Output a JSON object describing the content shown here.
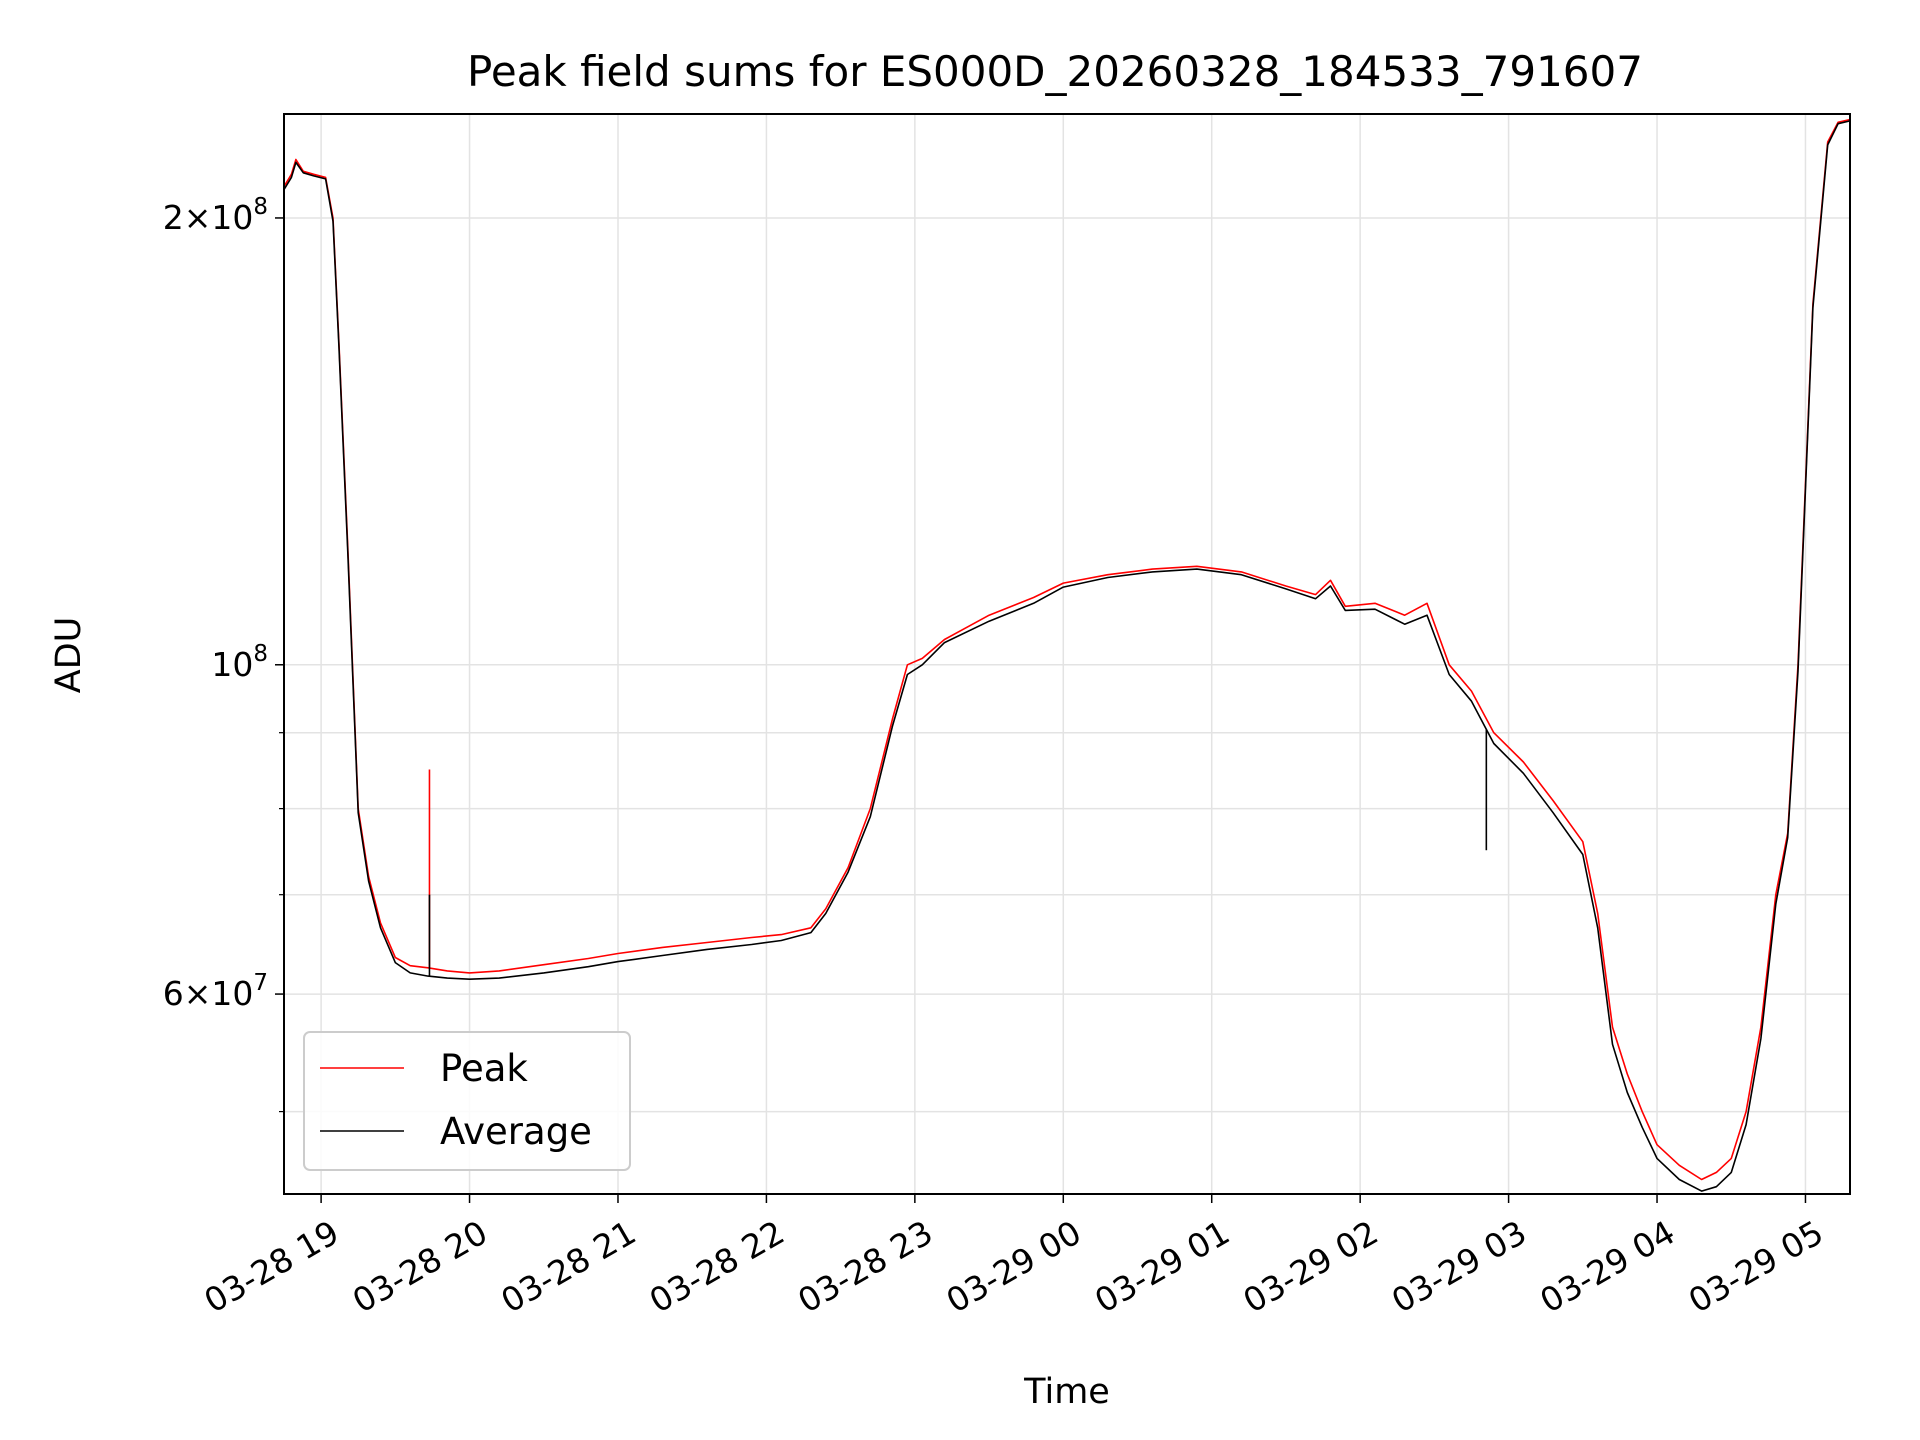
{
  "chart_data": {
    "type": "line",
    "title": "Peak field sums for ES000D_20260328_184533_791607",
    "xlabel": "Time",
    "ylabel": "ADU",
    "yscale": "log",
    "xlim": [
      18.75,
      29.3
    ],
    "ylim": [
      44000000,
      235000000
    ],
    "grid": true,
    "legend_position": "lower-left",
    "x_ticks": [
      {
        "value": 19,
        "label": "03-28 19"
      },
      {
        "value": 20,
        "label": "03-28 20"
      },
      {
        "value": 21,
        "label": "03-28 21"
      },
      {
        "value": 22,
        "label": "03-28 22"
      },
      {
        "value": 23,
        "label": "03-28 23"
      },
      {
        "value": 24,
        "label": "03-29 00"
      },
      {
        "value": 25,
        "label": "03-29 01"
      },
      {
        "value": 26,
        "label": "03-29 02"
      },
      {
        "value": 27,
        "label": "03-29 03"
      },
      {
        "value": 28,
        "label": "03-29 04"
      },
      {
        "value": 29,
        "label": "03-29 05"
      }
    ],
    "y_major_ticks": [
      {
        "value": 60000000,
        "base": "6×10",
        "exp": "7"
      },
      {
        "value": 100000000,
        "base": "10",
        "exp": "8"
      },
      {
        "value": 200000000,
        "base": "2×10",
        "exp": "8"
      }
    ],
    "y_minor_ticks": [
      50000000,
      70000000,
      80000000,
      90000000
    ],
    "series": [
      {
        "name": "Peak",
        "color": "#ff0000",
        "x": [
          18.75,
          18.8,
          18.83,
          18.88,
          18.95,
          19.03,
          19.08,
          19.12,
          19.18,
          19.25,
          19.32,
          19.4,
          19.5,
          19.6,
          19.72,
          19.85,
          20.0,
          20.2,
          20.5,
          20.8,
          21.0,
          21.3,
          21.6,
          21.9,
          22.1,
          22.3,
          22.4,
          22.55,
          22.7,
          22.85,
          22.95,
          23.05,
          23.2,
          23.5,
          23.8,
          24.0,
          24.3,
          24.6,
          24.9,
          25.2,
          25.5,
          25.7,
          25.8,
          25.9,
          26.1,
          26.3,
          26.45,
          26.6,
          26.75,
          26.9,
          27.1,
          27.3,
          27.5,
          27.6,
          27.7,
          27.8,
          27.9,
          28.0,
          28.15,
          28.3,
          28.4,
          28.5,
          28.6,
          28.7,
          28.8,
          28.88,
          28.95,
          29.05,
          29.15,
          29.22,
          29.3
        ],
        "y": [
          210000000,
          214000000,
          219000000,
          215000000,
          214000000,
          213000000,
          200000000,
          165000000,
          120000000,
          80000000,
          72000000,
          67000000,
          63500000,
          62700000,
          62500000,
          62200000,
          62000000,
          62200000,
          62800000,
          63400000,
          63900000,
          64500000,
          65000000,
          65500000,
          65800000,
          66500000,
          68500000,
          73000000,
          80000000,
          92000000,
          100000000,
          101000000,
          104000000,
          108000000,
          111000000,
          113500000,
          115000000,
          116000000,
          116500000,
          115500000,
          113000000,
          111500000,
          114000000,
          109500000,
          110000000,
          108000000,
          110000000,
          100000000,
          96000000,
          90000000,
          86000000,
          81000000,
          76000000,
          68000000,
          57000000,
          53000000,
          50000000,
          47500000,
          46000000,
          45000000,
          45500000,
          46500000,
          50000000,
          57000000,
          70000000,
          77000000,
          100000000,
          175000000,
          225000000,
          232000000,
          233000000
        ]
      },
      {
        "name": "Average",
        "color": "#000000",
        "x": [
          18.75,
          18.8,
          18.83,
          18.88,
          18.95,
          19.03,
          19.08,
          19.12,
          19.18,
          19.25,
          19.32,
          19.4,
          19.5,
          19.6,
          19.72,
          19.85,
          20.0,
          20.2,
          20.5,
          20.8,
          21.0,
          21.3,
          21.6,
          21.9,
          22.1,
          22.3,
          22.4,
          22.55,
          22.7,
          22.85,
          22.95,
          23.05,
          23.2,
          23.5,
          23.8,
          24.0,
          24.3,
          24.6,
          24.9,
          25.2,
          25.5,
          25.7,
          25.8,
          25.9,
          26.1,
          26.3,
          26.45,
          26.6,
          26.75,
          26.9,
          27.1,
          27.3,
          27.5,
          27.6,
          27.7,
          27.8,
          27.9,
          28.0,
          28.15,
          28.3,
          28.4,
          28.5,
          28.6,
          28.7,
          28.8,
          28.88,
          28.95,
          29.05,
          29.15,
          29.22,
          29.3
        ],
        "y": [
          209000000,
          213000000,
          218000000,
          214500000,
          213500000,
          212500000,
          199000000,
          164000000,
          119000000,
          79500000,
          71500000,
          66500000,
          63000000,
          62000000,
          61700000,
          61500000,
          61400000,
          61500000,
          62000000,
          62600000,
          63100000,
          63700000,
          64300000,
          64800000,
          65200000,
          66000000,
          68000000,
          72500000,
          79000000,
          91000000,
          98500000,
          100000000,
          103500000,
          107000000,
          110000000,
          112800000,
          114500000,
          115500000,
          116000000,
          115000000,
          112500000,
          110800000,
          113000000,
          108800000,
          109000000,
          106500000,
          108000000,
          98500000,
          94500000,
          88500000,
          84500000,
          79500000,
          74500000,
          66500000,
          55500000,
          51500000,
          48800000,
          46500000,
          45000000,
          44200000,
          44500000,
          45500000,
          49000000,
          56000000,
          69000000,
          76500000,
          99000000,
          174000000,
          224000000,
          231500000,
          232500000
        ]
      }
    ],
    "annotations": [
      {
        "series": "Peak",
        "x": 19.73,
        "y": 85000000,
        "kind": "spike"
      },
      {
        "series": "Average",
        "x": 19.73,
        "y": 70000000,
        "kind": "spike"
      },
      {
        "series": "Average",
        "x": 26.85,
        "y": 75000000,
        "kind": "dip"
      }
    ]
  }
}
